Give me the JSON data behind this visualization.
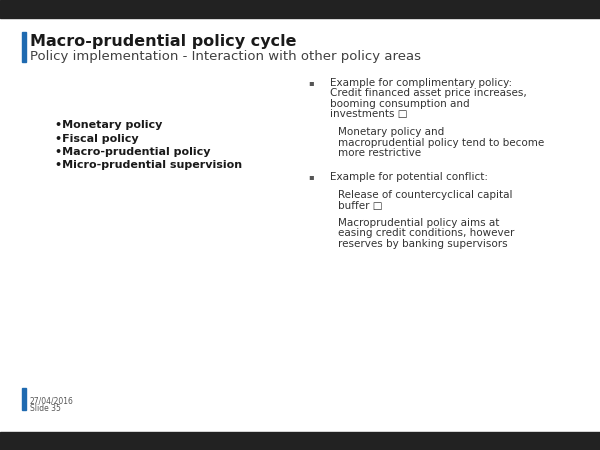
{
  "title": "Macro-prudential policy cycle",
  "subtitle": "Policy implementation - Interaction with other policy areas",
  "title_color": "#1a1a1a",
  "subtitle_color": "#404040",
  "accent_color": "#1f6ab0",
  "background_color": "#ffffff",
  "left_bullet_items": [
    "•Monetary policy",
    "•Fiscal policy",
    "•Macro-prudential policy",
    "•Micro-prudential supervision"
  ],
  "right_section": [
    {
      "type": "bullet",
      "lines": [
        "Example for complimentary policy:",
        "Credit financed asset price increases,",
        "booming consumption and",
        "investments □"
      ]
    },
    {
      "type": "sub",
      "lines": [
        "Monetary policy and",
        "macroprudential policy tend to become",
        "more restrictive"
      ]
    },
    {
      "type": "gap",
      "lines": []
    },
    {
      "type": "bullet",
      "lines": [
        "Example for potential conflict:"
      ]
    },
    {
      "type": "sub",
      "lines": [
        "Release of countercyclical capital",
        "buffer □"
      ]
    },
    {
      "type": "sub",
      "lines": [
        "Macroprudential policy aims at",
        "easing credit conditions, however",
        "reserves by banking supervisors"
      ]
    }
  ],
  "footer_date": "27/04/2016",
  "footer_slide": "Slide 35",
  "title_fontsize": 11.5,
  "subtitle_fontsize": 9.5,
  "body_fontsize": 7.5,
  "footer_fontsize": 5.5,
  "top_bar_height": 18,
  "bottom_bar_height": 18
}
